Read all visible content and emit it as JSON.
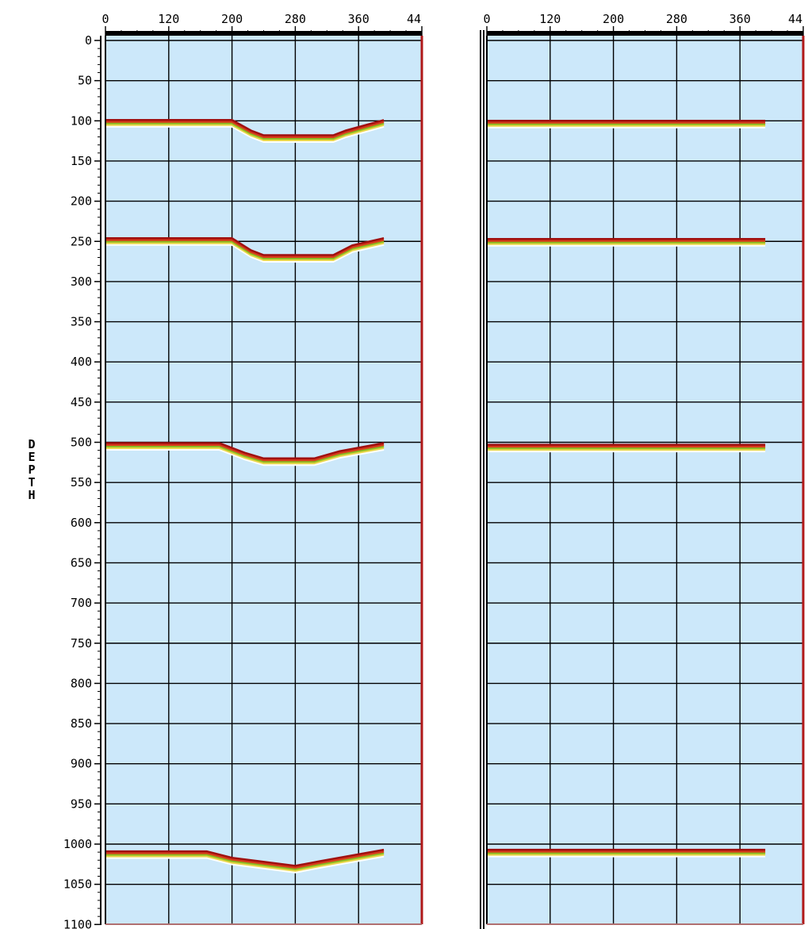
{
  "chart_data": {
    "type": "line",
    "ylabel": "DEPTH",
    "y_ticks": [
      "0",
      "50",
      "100",
      "150",
      "200",
      "250",
      "300",
      "350",
      "400",
      "450",
      "500",
      "550",
      "600",
      "650",
      "700",
      "750",
      "800",
      "850",
      "900",
      "950",
      "1000",
      "1050",
      "1100"
    ],
    "x_ticks": [
      "0",
      "120",
      "200",
      "280",
      "360",
      "44"
    ],
    "ylim": [
      0,
      1100
    ],
    "grid": true,
    "colors": {
      "panel_bg": "#cce8fa",
      "grid": "#000000",
      "reflector_dark": "#a01010",
      "reflector_mid": "#d63a1a",
      "reflector_green": "#8dbb22",
      "reflector_yellow": "#e8d84a",
      "reflector_white": "#ffffff",
      "right_edge": "#b01818"
    },
    "panels": [
      {
        "series": [
          {
            "x": [
              0,
              200,
              230,
              250,
              360,
              380,
              440
            ],
            "y": [
              100,
              100,
              113,
              119,
              119,
              113,
              100
            ]
          },
          {
            "x": [
              0,
              200,
              230,
              250,
              360,
              390,
              440
            ],
            "y": [
              247,
              247,
              262,
              268,
              268,
              256,
              247
            ]
          },
          {
            "x": [
              0,
              180,
              220,
              250,
              330,
              370,
              440
            ],
            "y": [
              502,
              502,
              514,
              521,
              521,
              512,
              502
            ]
          },
          {
            "x": [
              0,
              160,
              200,
              240,
              300,
              340,
              440
            ],
            "y": [
              1010,
              1010,
              1018,
              1022,
              1028,
              1022,
              1008
            ]
          }
        ]
      },
      {
        "series": [
          {
            "x": [
              0,
              440
            ],
            "y": [
              101,
              101
            ]
          },
          {
            "x": [
              0,
              440
            ],
            "y": [
              248,
              248
            ]
          },
          {
            "x": [
              0,
              440
            ],
            "y": [
              504,
              504
            ]
          },
          {
            "x": [
              0,
              440
            ],
            "y": [
              1008,
              1008
            ]
          }
        ]
      }
    ]
  }
}
